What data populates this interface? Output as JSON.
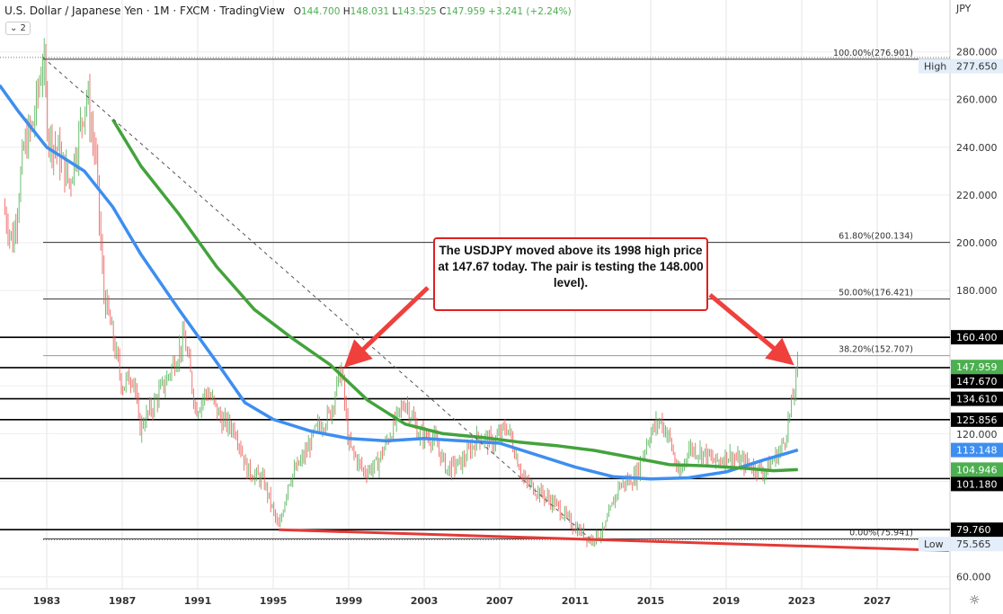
{
  "header": {
    "title": "U.S. Dollar / Japanese Yen · 1M · FXCM · TradingView",
    "open_label": "O",
    "open": "144.700",
    "high_label": "H",
    "high": "148.031",
    "low_label": "L",
    "low": "143.525",
    "close_label": "C",
    "close": "147.959",
    "change": "+3.241 (+2.24%)",
    "legend_toggle": "⌄ 2"
  },
  "annotation": "The USDJPY moved above its 1998 high price at 147.67 today. The pair is testing the 148.000 level).",
  "colors": {
    "up": "#4caf50",
    "down": "#ef5350",
    "ma_fast": "#3d8ef0",
    "ma_slow": "#43a33b",
    "trend": "#e53935",
    "arrow": "#f0403c"
  },
  "settings_icon": "gear-icon",
  "chart_data": {
    "type": "candlestick",
    "currency": "JPY",
    "ylim": [
      55,
      290
    ],
    "xlim": [
      1980.5,
      2030.8
    ],
    "x_ticks": [
      "1983",
      "1987",
      "1991",
      "1995",
      "1999",
      "2003",
      "2007",
      "2011",
      "2015",
      "2019",
      "2023",
      "2027"
    ],
    "y_ticks": [
      "60.000",
      "120.000",
      "180.000",
      "200.000",
      "220.000",
      "240.000",
      "260.000",
      "280.000"
    ],
    "price_path": [
      [
        1980.7,
        215
      ],
      [
        1981.2,
        200
      ],
      [
        1981.8,
        240
      ],
      [
        1982.3,
        250
      ],
      [
        1982.8,
        277.65
      ],
      [
        1983.1,
        245
      ],
      [
        1983.6,
        238
      ],
      [
        1984.2,
        225
      ],
      [
        1984.7,
        245
      ],
      [
        1985.1,
        263
      ],
      [
        1985.6,
        235
      ],
      [
        1986.0,
        180
      ],
      [
        1986.5,
        160
      ],
      [
        1987.0,
        140
      ],
      [
        1987.6,
        145
      ],
      [
        1987.9,
        122
      ],
      [
        1988.5,
        130
      ],
      [
        1989.3,
        142
      ],
      [
        1990.3,
        160
      ],
      [
        1990.9,
        130
      ],
      [
        1991.5,
        138
      ],
      [
        1992.3,
        125
      ],
      [
        1993.0,
        122
      ],
      [
        1993.6,
        105
      ],
      [
        1994.5,
        100
      ],
      [
        1995.3,
        79.76
      ],
      [
        1995.8,
        100
      ],
      [
        1996.6,
        110
      ],
      [
        1997.3,
        122
      ],
      [
        1998.0,
        128
      ],
      [
        1998.6,
        147.67
      ],
      [
        1999.0,
        115
      ],
      [
        1999.8,
        104
      ],
      [
        2000.5,
        107
      ],
      [
        2001.3,
        122
      ],
      [
        2002.0,
        134
      ],
      [
        2002.7,
        120
      ],
      [
        2003.5,
        118
      ],
      [
        2004.2,
        105
      ],
      [
        2005.0,
        108
      ],
      [
        2005.9,
        119
      ],
      [
        2006.6,
        116
      ],
      [
        2007.4,
        123
      ],
      [
        2008.3,
        100
      ],
      [
        2009.2,
        95
      ],
      [
        2010.0,
        90
      ],
      [
        2010.8,
        82
      ],
      [
        2011.8,
        75.565
      ],
      [
        2012.5,
        79
      ],
      [
        2013.3,
        98
      ],
      [
        2014.2,
        102
      ],
      [
        2014.9,
        119
      ],
      [
        2015.5,
        125.856
      ],
      [
        2016.0,
        118
      ],
      [
        2016.5,
        101.2
      ],
      [
        2017.0,
        114
      ],
      [
        2017.8,
        112
      ],
      [
        2018.4,
        108
      ],
      [
        2019.1,
        111
      ],
      [
        2019.8,
        108
      ],
      [
        2020.5,
        106
      ],
      [
        2021.0,
        104
      ],
      [
        2021.6,
        110
      ],
      [
        2022.0,
        115
      ],
      [
        2022.3,
        125
      ],
      [
        2022.6,
        138
      ],
      [
        2022.8,
        147.959
      ]
    ],
    "ma_fast": [
      [
        1980.5,
        266
      ],
      [
        1981.5,
        255
      ],
      [
        1983,
        240
      ],
      [
        1985,
        230
      ],
      [
        1986.5,
        215
      ],
      [
        1988,
        195
      ],
      [
        1990,
        172
      ],
      [
        1992,
        150
      ],
      [
        1993.5,
        133
      ],
      [
        1995,
        126
      ],
      [
        1997,
        121
      ],
      [
        1999,
        118
      ],
      [
        2001,
        117
      ],
      [
        2003,
        118
      ],
      [
        2005,
        117
      ],
      [
        2007,
        116
      ],
      [
        2009,
        111
      ],
      [
        2011,
        106
      ],
      [
        2013,
        102
      ],
      [
        2015,
        101
      ],
      [
        2017,
        101.5
      ],
      [
        2019,
        104
      ],
      [
        2021,
        109
      ],
      [
        2022.8,
        113.148
      ]
    ],
    "ma_slow": [
      [
        1986.5,
        251.6
      ],
      [
        1988,
        232
      ],
      [
        1990,
        212
      ],
      [
        1992,
        190
      ],
      [
        1994,
        172
      ],
      [
        1996,
        160
      ],
      [
        1998,
        149
      ],
      [
        2000,
        134
      ],
      [
        2002,
        124
      ],
      [
        2004,
        120
      ],
      [
        2006,
        118.5
      ],
      [
        2008,
        116.5
      ],
      [
        2010,
        115
      ],
      [
        2012,
        113
      ],
      [
        2014,
        110
      ],
      [
        2016,
        107
      ],
      [
        2018,
        106.5
      ],
      [
        2020,
        105.5
      ],
      [
        2021.5,
        104.5
      ],
      [
        2022.8,
        104.946
      ]
    ],
    "horizontal_levels": [
      "160.400",
      "147.670",
      "134.610",
      "125.856",
      "101.180",
      "79.760"
    ],
    "fibonacci": [
      {
        "label": "100.00%(276.901)",
        "value": 276.901
      },
      {
        "label": "61.80%(200.134)",
        "value": 200.134
      },
      {
        "label": "50.00%(176.421)",
        "value": 176.421
      },
      {
        "label": "38.20%(152.707)",
        "value": 152.707
      },
      {
        "label": "0.00%(75.941)",
        "value": 75.941
      }
    ],
    "high": {
      "label": "High",
      "value": "277.650"
    },
    "low": {
      "label": "Low",
      "value": "75.565"
    },
    "last_price": "147.959",
    "ma_fast_value": "113.148",
    "ma_slow_value": "104.946",
    "trendline_down": [
      [
        1982.8,
        277.65
      ],
      [
        2011.8,
        75.9
      ]
    ],
    "trendline_up": [
      [
        1995.3,
        79.76
      ],
      [
        2030.8,
        71
      ]
    ]
  }
}
